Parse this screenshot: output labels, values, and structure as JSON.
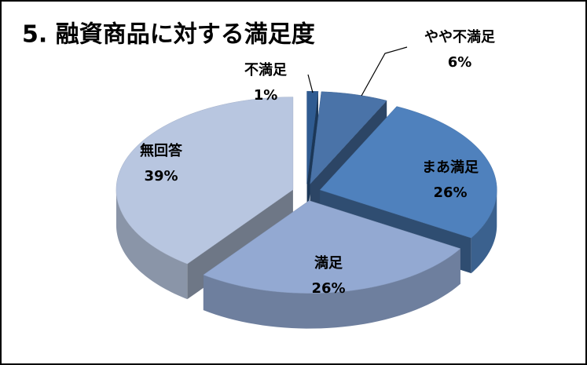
{
  "chart_data": {
    "type": "pie3d",
    "title": "5. 融資商品に対する満足度",
    "categories": [
      "不満足",
      "やや不満足",
      "まあ満足",
      "満足",
      "無回答"
    ],
    "values": [
      1,
      6,
      26,
      26,
      39
    ],
    "value_labels": [
      "1%",
      "6%",
      "26%",
      "26%",
      "39%"
    ],
    "colors": [
      "#2f5b91",
      "#4a73a8",
      "#4f81bd",
      "#93a9d2",
      "#b8c6e0"
    ]
  }
}
